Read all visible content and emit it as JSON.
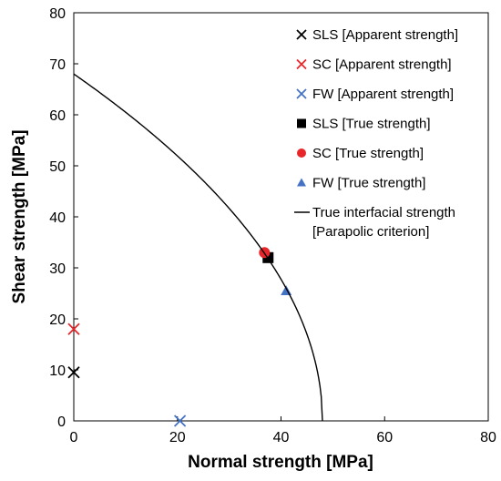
{
  "chart_data": {
    "type": "scatter",
    "xlabel": "Normal strength [MPa]",
    "ylabel": "Shear strength [MPa]",
    "xlim": [
      0,
      80
    ],
    "ylim": [
      0,
      80
    ],
    "xticks": [
      "0",
      "20",
      "40",
      "60",
      "80"
    ],
    "yticks": [
      "0",
      "10",
      "20",
      "30",
      "40",
      "50",
      "60",
      "70",
      "80"
    ],
    "grid": false,
    "legend_position": "top-right",
    "series": [
      {
        "name": "SLS [Apparent strength]",
        "marker": "x",
        "color": "#000000",
        "points": [
          [
            0,
            9.5
          ]
        ]
      },
      {
        "name": "SC [Apparent strength]",
        "marker": "x",
        "color": "#e8262a",
        "points": [
          [
            0,
            18
          ]
        ]
      },
      {
        "name": "FW [Apparent strength]",
        "marker": "x",
        "color": "#4472c4",
        "points": [
          [
            20.5,
            0
          ]
        ]
      },
      {
        "name": "SLS [True strength]",
        "marker": "square",
        "color": "#000000",
        "points": [
          [
            37.5,
            32
          ]
        ]
      },
      {
        "name": "SC [True strength]",
        "marker": "circle",
        "color": "#e8262a",
        "points": [
          [
            36.8,
            33
          ]
        ]
      },
      {
        "name": "FW [True strength]",
        "marker": "triangle",
        "color": "#4472c4",
        "points": [
          [
            41,
            25.5
          ]
        ]
      },
      {
        "name": "True interfacial strength [Parapolic criterion]",
        "type": "line",
        "color": "#000000",
        "criterion": {
          "tau0": 68,
          "sigma0": 48
        }
      }
    ],
    "legend_lines": {
      "line_series": [
        "True interfacial strength",
        "[Parapolic criterion]"
      ]
    }
  }
}
